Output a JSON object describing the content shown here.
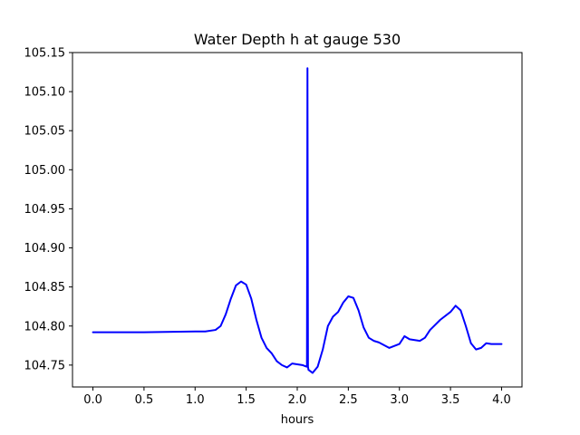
{
  "chart_data": {
    "type": "line",
    "title": "Water Depth h at gauge 530",
    "xlabel": "hours",
    "ylabel": "",
    "xlim": [
      -0.2,
      4.2
    ],
    "ylim": [
      104.722,
      105.15
    ],
    "xticks": [
      0.0,
      0.5,
      1.0,
      1.5,
      2.0,
      2.5,
      3.0,
      3.5,
      4.0
    ],
    "xtick_labels": [
      "0.0",
      "0.5",
      "1.0",
      "1.5",
      "2.0",
      "2.5",
      "3.0",
      "3.5",
      "4.0"
    ],
    "yticks": [
      104.75,
      104.8,
      104.85,
      104.9,
      104.95,
      105.0,
      105.05,
      105.1,
      105.15
    ],
    "ytick_labels": [
      "104.75",
      "104.80",
      "104.85",
      "104.90",
      "104.95",
      "105.00",
      "105.05",
      "105.10",
      "105.15"
    ],
    "grid": false,
    "series": [
      {
        "color": "#0000ff",
        "x": [
          0.0,
          0.5,
          1.0,
          1.1,
          1.2,
          1.25,
          1.3,
          1.35,
          1.4,
          1.45,
          1.5,
          1.55,
          1.6,
          1.65,
          1.7,
          1.75,
          1.8,
          1.85,
          1.9,
          1.95,
          2.0,
          2.05,
          2.09,
          2.095,
          2.1,
          2.105,
          2.11,
          2.15,
          2.2,
          2.25,
          2.3,
          2.35,
          2.4,
          2.45,
          2.5,
          2.55,
          2.6,
          2.65,
          2.7,
          2.75,
          2.8,
          2.9,
          3.0,
          3.05,
          3.1,
          3.15,
          3.2,
          3.25,
          3.3,
          3.4,
          3.5,
          3.55,
          3.6,
          3.65,
          3.7,
          3.75,
          3.8,
          3.85,
          3.9,
          3.95,
          4.0
        ],
        "y": [
          104.792,
          104.792,
          104.793,
          104.793,
          104.795,
          104.8,
          104.815,
          104.835,
          104.852,
          104.857,
          104.853,
          104.835,
          104.808,
          104.785,
          104.772,
          104.765,
          104.755,
          104.75,
          104.747,
          104.752,
          104.751,
          104.75,
          104.748,
          104.748,
          105.13,
          104.748,
          104.744,
          104.74,
          104.748,
          104.77,
          104.8,
          104.812,
          104.818,
          104.83,
          104.838,
          104.836,
          104.82,
          104.798,
          104.785,
          104.781,
          104.779,
          104.772,
          104.777,
          104.787,
          104.783,
          104.782,
          104.781,
          104.785,
          104.795,
          104.808,
          104.818,
          104.826,
          104.82,
          104.8,
          104.778,
          104.77,
          104.772,
          104.778,
          104.777,
          104.777,
          104.777
        ]
      }
    ]
  }
}
